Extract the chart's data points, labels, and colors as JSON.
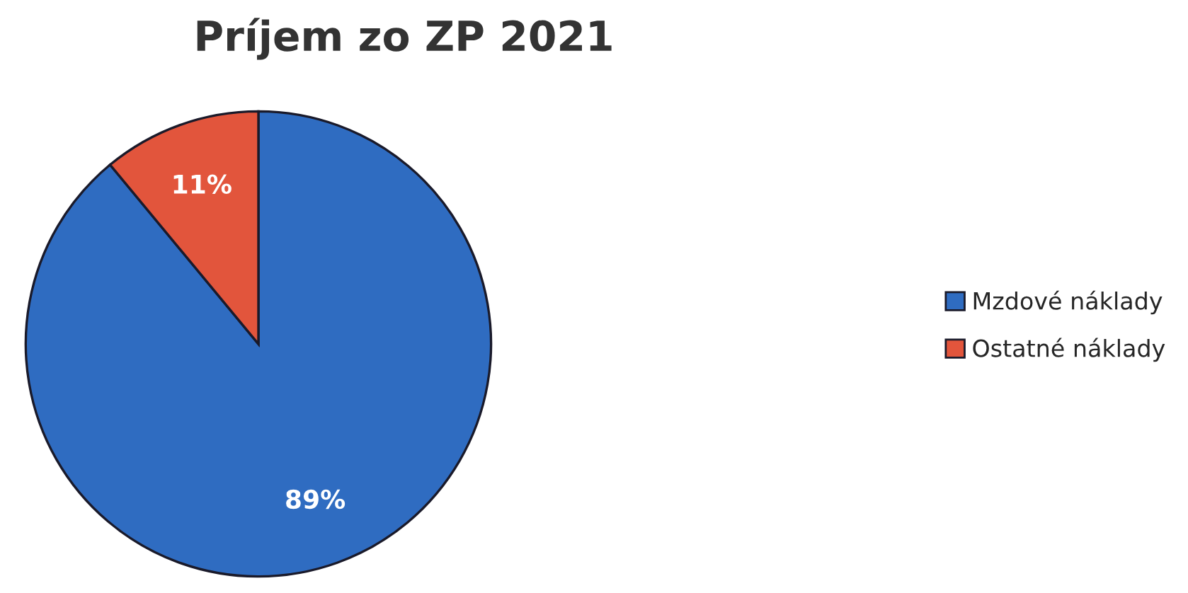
{
  "chart_data": {
    "type": "pie",
    "title": "Príjem zo ZP 2021",
    "categories": [
      "Mzdové náklady",
      "Ostatné náklady"
    ],
    "values": [
      89,
      11
    ],
    "colors": [
      "#2f6cc1",
      "#e2553c"
    ],
    "value_labels": [
      "89%",
      "11%"
    ],
    "legend": "right"
  }
}
